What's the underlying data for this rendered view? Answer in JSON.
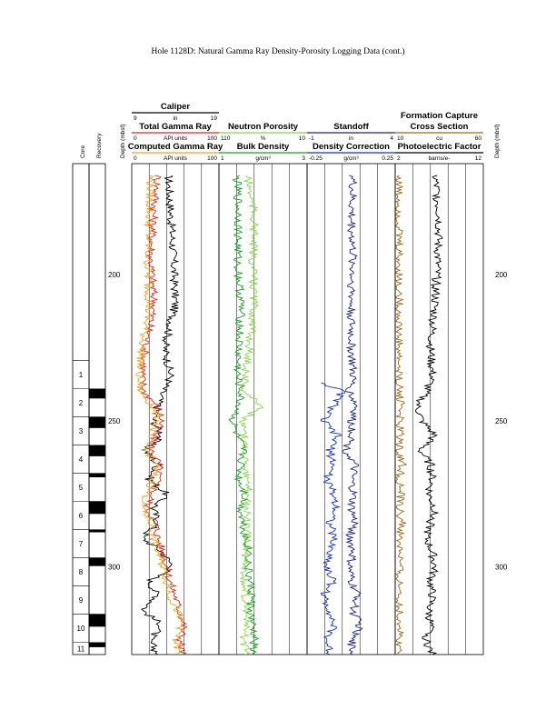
{
  "title": "Hole 1128D: Natural Gamma Ray Density-Porosity Logging Data (cont.)",
  "depth_label": "Depth (mbsf)",
  "core_label": "Core",
  "recovery_label": "Recovery",
  "cores": [
    {
      "label": "1",
      "top": 229.3,
      "recovered": 0.0
    },
    {
      "label": "2",
      "top": 239.0,
      "recovered": 0.35
    },
    {
      "label": "3",
      "top": 248.6,
      "recovered": 0.4
    },
    {
      "label": "4",
      "top": 258.3,
      "recovered": 0.4
    },
    {
      "label": "5",
      "top": 267.9,
      "recovered": 0.15
    },
    {
      "label": "6",
      "top": 277.5,
      "recovered": 0.45
    },
    {
      "label": "7",
      "top": 287.2,
      "recovered": 0.1
    },
    {
      "label": "8",
      "top": 296.8,
      "recovered": 0.3
    },
    {
      "label": "9",
      "top": 306.5,
      "recovered": 0.0
    },
    {
      "label": "10",
      "top": 316.1,
      "recovered": 0.45
    },
    {
      "label": "11",
      "top": 325.8,
      "recovered": 0.4
    }
  ],
  "tracks": [
    {
      "headers": [
        {
          "name": "Caliper",
          "unit": "in",
          "min": "9",
          "max": "19",
          "color": "#000000"
        },
        {
          "name": "Total Gamma Ray",
          "unit": "API units",
          "min": "0",
          "max": "100",
          "color": "#d42a1e"
        },
        {
          "name": "Computed Gamma Ray",
          "unit": "API units",
          "min": "0",
          "max": "100",
          "color": "#f0a020"
        }
      ]
    },
    {
      "headers": [
        {
          "name": "Neutron Porosity",
          "unit": "%",
          "min": "110",
          "max": "10",
          "color": "#88d44a"
        },
        {
          "name": "Bulk Density",
          "unit": "g/cm³",
          "min": "1",
          "max": "3",
          "color": "#1f9a2a"
        }
      ]
    },
    {
      "headers": [
        {
          "name": "Standoff",
          "unit": "in",
          "min": "-1",
          "max": "4",
          "color": "#1a237e"
        },
        {
          "name": "Density Correction",
          "unit": "g/cm³",
          "min": "-0.25",
          "max": "0.25",
          "color": "#1730b5"
        }
      ]
    },
    {
      "headers": [
        {
          "name": "Formation Capture Cross Section",
          "unit": "cu",
          "min": "10",
          "max": "60",
          "color": "#9a6a1a"
        },
        {
          "name": "Photoelectric Factor",
          "unit": "barns/e-",
          "min": "2",
          "max": "12",
          "color": "#000000"
        }
      ]
    }
  ],
  "chart_data": {
    "type": "line",
    "title": "Hole 1128D: Natural Gamma Ray Density-Porosity Logging Data (cont.)",
    "ylabel": "Depth (mbsf)",
    "ylim": [
      330,
      162
    ],
    "y_ticks": [
      200,
      250,
      300
    ],
    "grid": true,
    "series": [
      {
        "name": "Caliper",
        "unit": "in",
        "range": [
          9,
          19
        ],
        "color": "#000000",
        "track": 0,
        "depth": [
          166,
          180,
          195,
          210,
          225,
          235,
          240,
          245,
          250,
          255,
          260,
          265,
          270,
          275,
          280,
          285,
          290,
          295,
          300,
          305,
          310,
          315,
          320,
          325,
          330
        ],
        "values": [
          13.2,
          13.5,
          13.8,
          14.0,
          12.8,
          13.5,
          12.5,
          12.0,
          11.5,
          12.5,
          10.5,
          12.0,
          11.0,
          13.0,
          11.5,
          12.0,
          10.2,
          12.5,
          13.8,
          11.0,
          12.0,
          10.3,
          12.5,
          11.0,
          12.0
        ]
      },
      {
        "name": "Total Gamma Ray",
        "unit": "API units",
        "range": [
          0,
          100
        ],
        "color": "#d42a1e",
        "track": 0,
        "depth": [
          166,
          180,
          195,
          210,
          225,
          235,
          240,
          245,
          250,
          255,
          260,
          265,
          270,
          275,
          280,
          285,
          290,
          295,
          300,
          305,
          310,
          315,
          320,
          325,
          330
        ],
        "values": [
          30,
          25,
          22,
          26,
          16,
          12,
          14,
          30,
          35,
          26,
          22,
          32,
          30,
          24,
          18,
          28,
          30,
          36,
          40,
          44,
          50,
          55,
          60,
          56,
          58
        ]
      },
      {
        "name": "Computed Gamma Ray",
        "unit": "API units",
        "range": [
          0,
          100
        ],
        "color": "#f0a020",
        "track": 0,
        "depth": [
          166,
          180,
          195,
          210,
          225,
          235,
          240,
          245,
          250,
          255,
          260,
          265,
          270,
          275,
          280,
          285,
          290,
          295,
          300,
          305,
          310,
          315,
          320,
          325,
          330
        ],
        "values": [
          22,
          20,
          18,
          20,
          12,
          8,
          10,
          24,
          30,
          20,
          16,
          28,
          24,
          18,
          12,
          22,
          24,
          30,
          36,
          40,
          44,
          52,
          58,
          50,
          54
        ]
      },
      {
        "name": "Neutron Porosity",
        "unit": "%",
        "range": [
          110,
          10
        ],
        "color": "#88d44a",
        "track": 1,
        "depth": [
          166,
          180,
          195,
          210,
          225,
          235,
          240,
          245,
          250,
          255,
          260,
          265,
          270,
          275,
          280,
          285,
          290,
          295,
          300,
          305,
          310,
          315,
          320,
          325,
          330
        ],
        "values": [
          78,
          70,
          72,
          70,
          76,
          80,
          82,
          60,
          85,
          82,
          80,
          78,
          80,
          76,
          78,
          80,
          78,
          80,
          80,
          82,
          80,
          78,
          80,
          82,
          80
        ]
      },
      {
        "name": "Bulk Density",
        "unit": "g/cm³",
        "range": [
          1,
          3
        ],
        "color": "#1f9a2a",
        "track": 1,
        "depth": [
          166,
          180,
          195,
          210,
          225,
          235,
          240,
          245,
          250,
          255,
          260,
          265,
          270,
          275,
          280,
          285,
          290,
          295,
          300,
          305,
          310,
          315,
          320,
          325,
          330
        ],
        "values": [
          1.4,
          1.45,
          1.42,
          1.5,
          1.45,
          1.42,
          1.5,
          1.45,
          1.3,
          1.4,
          1.55,
          1.5,
          1.45,
          1.6,
          1.5,
          1.55,
          1.6,
          1.7,
          1.65,
          1.7,
          1.75,
          1.7,
          1.75,
          1.8,
          1.75
        ]
      },
      {
        "name": "Standoff",
        "unit": "in",
        "range": [
          -1,
          4
        ],
        "color": "#1a237e",
        "track": 2,
        "depth": [
          166,
          180,
          195,
          210,
          225,
          235,
          240,
          245,
          250,
          255,
          260,
          265,
          270,
          275,
          280,
          285,
          290,
          295,
          300,
          305,
          310,
          315,
          320,
          325,
          330
        ],
        "values": [
          1.6,
          1.5,
          1.6,
          1.5,
          1.5,
          1.6,
          1.4,
          1.8,
          1.5,
          1.6,
          1.2,
          1.7,
          1.5,
          1.6,
          1.5,
          1.7,
          1.4,
          1.6,
          1.4,
          1.5,
          1.9,
          1.6,
          2.0,
          1.5,
          1.6
        ]
      },
      {
        "name": "Density Correction",
        "unit": "g/cm³",
        "range": [
          -0.25,
          0.25
        ],
        "color": "#1730b5",
        "track": 2,
        "depth": [
          237,
          240,
          245,
          250,
          255,
          260,
          265,
          270,
          275,
          280,
          285,
          290,
          295,
          300,
          305,
          310,
          315,
          320,
          325,
          330
        ],
        "values": [
          -0.16,
          -0.05,
          -0.1,
          -0.16,
          -0.08,
          -0.12,
          -0.1,
          -0.14,
          -0.1,
          -0.08,
          -0.12,
          -0.1,
          -0.12,
          -0.14,
          -0.1,
          -0.16,
          -0.12,
          -0.1,
          -0.14,
          -0.12
        ]
      },
      {
        "name": "Formation Capture Cross Section",
        "unit": "cu",
        "range": [
          10,
          60
        ],
        "color": "#9a6a1a",
        "track": 3,
        "depth": [
          166,
          180,
          195,
          210,
          225,
          235,
          240,
          245,
          250,
          255,
          260,
          265,
          270,
          275,
          280,
          285,
          290,
          295,
          300,
          305,
          310,
          315,
          320,
          325,
          330
        ],
        "values": [
          12,
          12,
          12,
          12,
          12,
          12,
          12,
          14,
          12,
          13,
          12,
          14,
          12,
          13,
          12,
          14,
          12,
          13,
          12,
          12,
          13,
          12,
          13,
          12,
          12
        ]
      },
      {
        "name": "Photoelectric Factor",
        "unit": "barns/e-",
        "range": [
          2,
          12
        ],
        "color": "#000000",
        "track": 3,
        "depth": [
          166,
          180,
          195,
          210,
          225,
          235,
          240,
          245,
          250,
          255,
          260,
          265,
          270,
          275,
          280,
          285,
          290,
          295,
          300,
          305,
          310,
          315,
          320,
          325,
          330
        ],
        "values": [
          6.5,
          7.0,
          6.8,
          6.5,
          6.0,
          6.2,
          5.5,
          4.5,
          5.0,
          6.5,
          4.8,
          6.0,
          6.2,
          5.8,
          6.5,
          6.0,
          5.5,
          6.2,
          6.5,
          6.0,
          6.2,
          5.8,
          6.0,
          5.5,
          6.2
        ]
      }
    ]
  }
}
